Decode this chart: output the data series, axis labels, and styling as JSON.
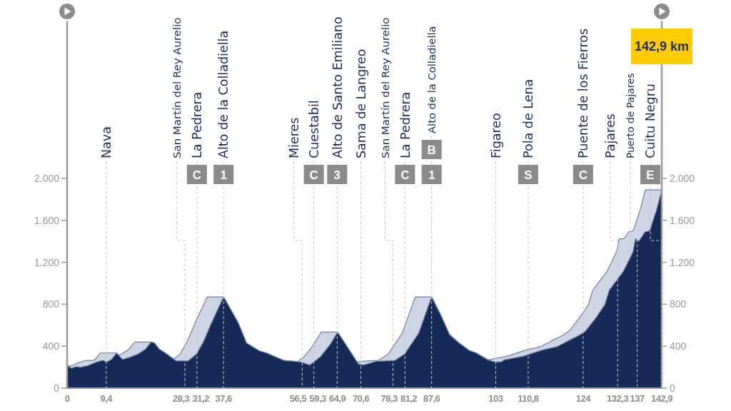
{
  "chart_data": {
    "type": "area",
    "title": "142,9 km",
    "series": [
      {
        "color": "#152a56",
        "x": [
          0,
          1.0,
          2.2,
          3.3,
          5.0,
          6.8,
          8.5,
          9.6,
          10.7,
          11.9,
          13.3,
          14.8,
          17.0,
          18.8,
          20.2,
          21.0,
          22.2,
          23.6,
          26.2,
          29.1,
          31.1,
          32.8,
          34.8,
          37.6,
          41.1,
          43.1,
          46.2,
          47.9,
          52.0,
          54.8,
          56.5,
          58.3,
          60.9,
          63.2,
          65.0,
          66.8,
          70.0,
          71.1,
          74.3,
          76.5,
          78.8,
          81.1,
          84.5,
          87.6,
          89.7,
          91.9,
          94.2,
          96.6,
          98.3,
          101.1,
          102.8,
          104.3,
          105.1,
          109.7,
          114.3,
          117.7,
          120.6,
          122.9,
          124.6,
          126.9,
          129.2,
          130.3,
          132.0,
          133.7,
          136.0,
          136.6,
          137.4,
          138.9,
          140.0,
          141.7,
          142.9
        ],
        "values": [
          220,
          190,
          205,
          200,
          215,
          245,
          265,
          250,
          275,
          335,
          275,
          290,
          325,
          370,
          440,
          430,
          370,
          335,
          260,
          260,
          325,
          445,
          630,
          870,
          625,
          430,
          355,
          335,
          265,
          255,
          245,
          220,
          300,
          415,
          535,
          425,
          230,
          220,
          255,
          260,
          265,
          325,
          525,
          870,
          705,
          510,
          430,
          360,
          335,
          270,
          250,
          250,
          270,
          305,
          365,
          395,
          455,
          500,
          545,
          660,
          795,
          935,
          1025,
          1115,
          1300,
          1425,
          1400,
          1490,
          1500,
          1705,
          1890
        ]
      }
    ],
    "xlim": [
      0,
      142.9
    ],
    "xticks": [
      0,
      {
        "value": 9.4,
        "label": "9,4"
      },
      {
        "value": 28.3,
        "label": "28,3"
      },
      {
        "value": 31.2,
        "label": "31,2"
      },
      {
        "value": 37.6,
        "label": "37,6"
      },
      {
        "value": 56.5,
        "label": "56,5"
      },
      {
        "value": 59.3,
        "label": "59,3"
      },
      {
        "value": 64.9,
        "label": "64,9"
      },
      {
        "value": 70.6,
        "label": "70,6"
      },
      {
        "value": 78.3,
        "label": "78,3"
      },
      {
        "value": 81.2,
        "label": "81,2"
      },
      {
        "value": 87.6,
        "label": "87,6"
      },
      103,
      {
        "value": 110.8,
        "label": "110,8"
      },
      124,
      {
        "value": 132.3,
        "label": "132,3"
      },
      137,
      {
        "value": 142.9,
        "label": "142,9"
      }
    ],
    "ylim": [
      0,
      3500
    ],
    "yticks": [
      0,
      400,
      800,
      {
        "value": 1200,
        "label": "1.200"
      },
      {
        "value": 1600,
        "label": "1.600"
      },
      {
        "value": 2000,
        "label": "2.000"
      }
    ],
    "y2lim": [
      0,
      3500
    ],
    "y2ticks": [
      0,
      400,
      800,
      {
        "value": 1200,
        "label": "1.200"
      },
      {
        "value": 1600,
        "label": "1.600"
      },
      {
        "value": 2000,
        "label": "2.000"
      }
    ],
    "ref_lines": [
      {
        "axis": "x",
        "value": 9.4,
        "label": "Nava",
        "color": "#c8c8c8",
        "line_style": "dashed"
      },
      {
        "axis": "x",
        "value": 28.3,
        "label": "San Martín del Rey Aurelio",
        "color": "#c8c8c8",
        "line_style": "dashed"
      },
      {
        "axis": "x",
        "value": 31.2,
        "label": "La Pedrera",
        "color": "#c8c8c8",
        "line_style": "dashed"
      },
      {
        "axis": "x",
        "value": 37.6,
        "label": "Alto de la Colladiella",
        "color": "#c8c8c8",
        "line_style": "dashed"
      },
      {
        "axis": "x",
        "value": 56.5,
        "label": "Mieres",
        "color": "#c8c8c8",
        "line_style": "dashed"
      },
      {
        "axis": "x",
        "value": 59.3,
        "label": "Cuestabil",
        "color": "#c8c8c8",
        "line_style": "dashed"
      },
      {
        "axis": "x",
        "value": 64.9,
        "label": "Alto de Santo Emiliano",
        "color": "#c8c8c8",
        "line_style": "dashed"
      },
      {
        "axis": "x",
        "value": 70.6,
        "label": "Sama de Langreo",
        "color": "#c8c8c8",
        "line_style": "dashed"
      },
      {
        "axis": "x",
        "value": 78.3,
        "label": "San Martín del Rey Aurelio",
        "color": "#c8c8c8",
        "line_style": "dashed"
      },
      {
        "axis": "x",
        "value": 81.2,
        "label": "La Pedrera",
        "color": "#c8c8c8",
        "line_style": "dashed"
      },
      {
        "axis": "x",
        "value": 87.6,
        "label": "Alto de la Colladiella",
        "color": "#c8c8c8",
        "line_style": "dashed"
      },
      {
        "axis": "x",
        "value": 103,
        "label": "Figareo",
        "color": "#c8c8c8",
        "line_style": "dashed"
      },
      {
        "axis": "x",
        "value": 110.8,
        "label": "Pola de Lena",
        "color": "#c8c8c8",
        "line_style": "dashed"
      },
      {
        "axis": "x",
        "value": 124,
        "label": "Puente de los Fierros",
        "color": "#c8c8c8",
        "line_style": "dashed"
      },
      {
        "axis": "x",
        "value": 132.3,
        "label": "Pajares",
        "color": "#c8c8c8",
        "line_style": "dashed"
      },
      {
        "axis": "x",
        "value": 137,
        "label": "Puerto de Pajares",
        "color": "#c8c8c8",
        "line_style": "dashed"
      },
      {
        "axis": "x",
        "value": 142.9,
        "label": "Cuitu Negru",
        "color": "#c8c8c8",
        "line_style": "dashed"
      }
    ],
    "annotations": [
      {
        "text": "C",
        "x": 31.2
      },
      {
        "text": "1",
        "x": 37.6
      },
      {
        "text": "C",
        "x": 59.3
      },
      {
        "text": "3",
        "x": 64.9
      },
      {
        "text": "C",
        "x": 81.2
      },
      {
        "text": "1",
        "x": 87.6
      },
      {
        "text": "B",
        "x": 87.6
      },
      {
        "text": "S",
        "x": 110.8
      },
      {
        "text": "C",
        "x": 124
      },
      {
        "text": "E",
        "x": 142.9,
        "y": 1890
      }
    ]
  }
}
